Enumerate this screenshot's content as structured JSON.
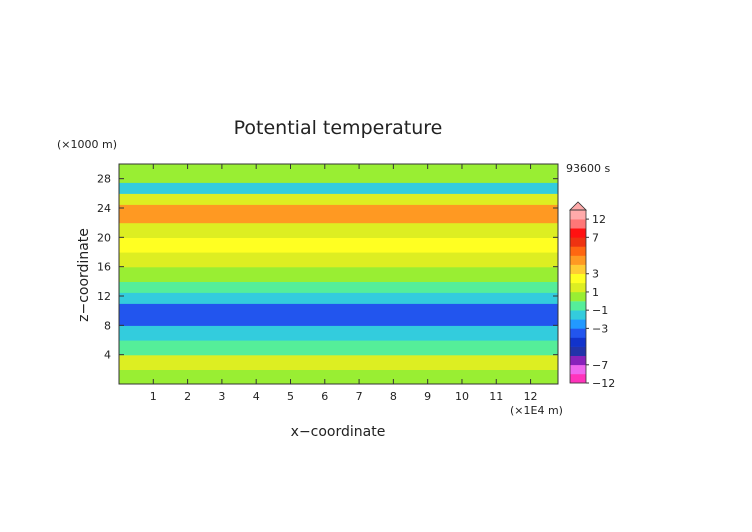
{
  "chart_data": {
    "type": "heatmap",
    "title": "Potential temperature",
    "xlabel": "x−coordinate",
    "ylabel": "z−coordinate",
    "x_unit": "(×1E4 m)",
    "y_unit": "(×1000 m)",
    "time_label": "93600 s",
    "xlim": [
      0,
      12.8
    ],
    "ylim": [
      0,
      30
    ],
    "x_ticks": [
      "1",
      "2",
      "3",
      "4",
      "5",
      "6",
      "7",
      "8",
      "9",
      "10",
      "11",
      "12"
    ],
    "y_ticks": [
      "4",
      "8",
      "12",
      "16",
      "20",
      "24",
      "28"
    ],
    "colorbar": {
      "labels": [
        "12",
        "7",
        "3",
        "1",
        "−1",
        "−3",
        "−7",
        "−12"
      ],
      "bounds": [
        -12,
        -9,
        -7,
        -6,
        -5,
        -4,
        -3,
        -2,
        -1,
        0,
        1,
        2,
        3,
        4,
        5,
        6,
        7,
        9,
        12
      ],
      "colors": [
        "#ff33bb",
        "#ee66ee",
        "#8822bb",
        "#2233aa",
        "#1133cc",
        "#2255ee",
        "#2299ff",
        "#33ccdd",
        "#55ee99",
        "#99ee33",
        "#ddee22",
        "#ffff22",
        "#ffcc33",
        "#ff9922",
        "#ff6611",
        "#ee3311",
        "#ff1111",
        "#ff7777",
        "#ffaaaa"
      ]
    },
    "bands": [
      {
        "z": [
          0,
          2
        ],
        "value": 0.2
      },
      {
        "z": [
          2,
          4
        ],
        "value": 1.2
      },
      {
        "z": [
          4,
          6
        ],
        "value": -0.8
      },
      {
        "z": [
          6,
          8
        ],
        "value": -1.6
      },
      {
        "z": [
          8,
          11
        ],
        "value": -3.5
      },
      {
        "z": [
          11,
          12.5
        ],
        "value": -1.8
      },
      {
        "z": [
          12.5,
          14
        ],
        "value": -0.3
      },
      {
        "z": [
          14,
          16
        ],
        "value": 0.6
      },
      {
        "z": [
          16,
          18
        ],
        "value": 1.8
      },
      {
        "z": [
          18,
          20
        ],
        "value": 2.5
      },
      {
        "z": [
          20,
          22
        ],
        "value": 1.5
      },
      {
        "z": [
          22,
          24.5
        ],
        "value": 4.2
      },
      {
        "z": [
          24.5,
          26
        ],
        "value": 1.2
      },
      {
        "z": [
          26,
          27.5
        ],
        "value": -1.2
      },
      {
        "z": [
          27.5,
          30
        ],
        "value": 0.8
      }
    ]
  }
}
